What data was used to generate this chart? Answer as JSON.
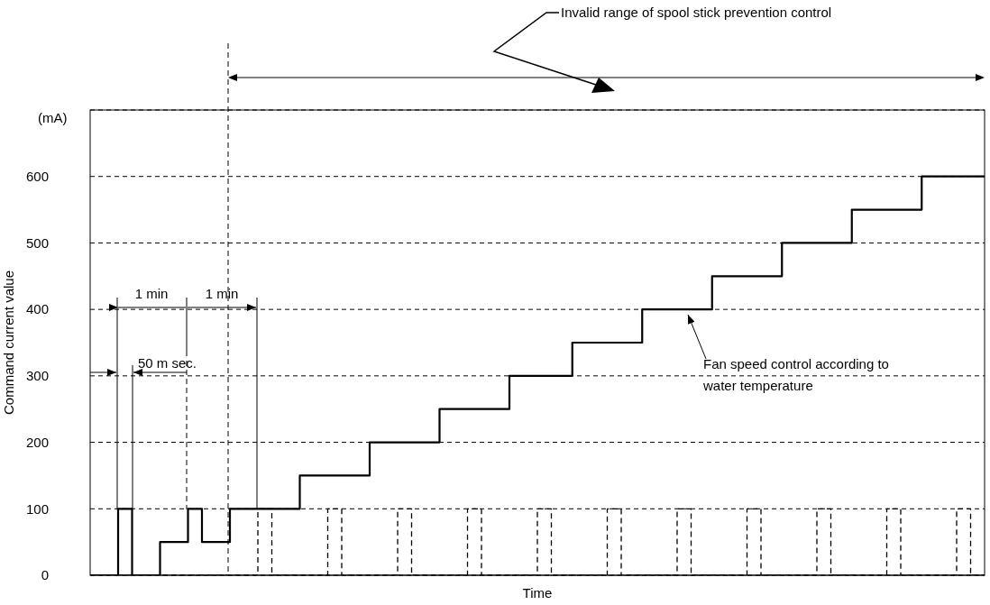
{
  "chart_data": {
    "type": "step",
    "xlabel": "Time",
    "ylabel": "Command current value",
    "categories": [
      null,
      null,
      null,
      null,
      null,
      null,
      null,
      null,
      null,
      null,
      null,
      null,
      null,
      null,
      null,
      null,
      null,
      null,
      null,
      null,
      null,
      null,
      null,
      null,
      null,
      null,
      null,
      null,
      null,
      null,
      null,
      null,
      null,
      null,
      null,
      null,
      null,
      null,
      null,
      null,
      null,
      null,
      null,
      null,
      null,
      null,
      null,
      null,
      null,
      null,
      null,
      null,
      null,
      null,
      null,
      null,
      null,
      null,
      null,
      null,
      null,
      null,
      null,
      null,
      null,
      null,
      null,
      null,
      null,
      null,
      null,
      null,
      null,
      null,
      null,
      null,
      null,
      null,
      null,
      null,
      null,
      null,
      null,
      null,
      null,
      null,
      null,
      null,
      null,
      null,
      null,
      null,
      null,
      null,
      null,
      null,
      null,
      null,
      null,
      null,
      null,
      null,
      null,
      null,
      null,
      null,
      null,
      null,
      null,
      null,
      null,
      null,
      null,
      null,
      null,
      null,
      null,
      null,
      null,
      null,
      null,
      null,
      null,
      null,
      null,
      null,
      null,
      null,
      null
    ],
    "series": [
      {
        "color": "#000000",
        "line_style": "solid",
        "values": [
          0,
          0,
          0,
          0,
          100,
          100,
          0,
          0,
          0,
          0,
          50,
          50,
          50,
          50,
          100,
          100,
          50,
          50,
          50,
          50,
          100,
          100,
          100,
          100,
          100,
          100,
          100,
          100,
          100,
          100,
          150,
          150,
          150,
          150,
          150,
          150,
          150,
          150,
          150,
          150,
          200,
          200,
          200,
          200,
          200,
          200,
          200,
          200,
          200,
          200,
          250,
          250,
          250,
          250,
          250,
          250,
          250,
          250,
          250,
          250,
          300,
          300,
          300,
          300,
          300,
          300,
          300,
          300,
          300,
          350,
          350,
          350,
          350,
          350,
          350,
          350,
          350,
          350,
          350,
          400,
          400,
          400,
          400,
          400,
          400,
          400,
          400,
          400,
          400,
          450,
          450,
          450,
          450,
          450,
          450,
          450,
          450,
          450,
          450,
          500,
          500,
          500,
          500,
          500,
          500,
          500,
          500,
          500,
          500,
          550,
          550,
          550,
          550,
          550,
          550,
          550,
          550,
          550,
          550,
          600,
          600,
          600,
          600,
          600,
          600,
          600,
          600,
          600,
          600
        ]
      },
      {
        "color": "#000000",
        "line_style": "dashed",
        "values": [
          0,
          0,
          0,
          0,
          0,
          0,
          0,
          0,
          0,
          0,
          0,
          0,
          0,
          0,
          0,
          0,
          0,
          0,
          0,
          0,
          0,
          0,
          0,
          0,
          100,
          100,
          0,
          0,
          0,
          0,
          0,
          0,
          0,
          0,
          100,
          100,
          0,
          0,
          0,
          0,
          0,
          0,
          0,
          0,
          100,
          100,
          0,
          0,
          0,
          0,
          0,
          0,
          0,
          0,
          100,
          100,
          0,
          0,
          0,
          0,
          0,
          0,
          0,
          0,
          100,
          100,
          0,
          0,
          0,
          0,
          0,
          0,
          0,
          0,
          100,
          100,
          0,
          0,
          0,
          0,
          0,
          0,
          0,
          0,
          100,
          100,
          0,
          0,
          0,
          0,
          0,
          0,
          0,
          0,
          100,
          100,
          0,
          0,
          0,
          0,
          0,
          0,
          0,
          0,
          100,
          100,
          0,
          0,
          0,
          0,
          0,
          0,
          0,
          0,
          100,
          100,
          0,
          0,
          0,
          0,
          0,
          0,
          0,
          0,
          100,
          100,
          0,
          0,
          0
        ]
      }
    ],
    "ylim": [
      0,
      700
    ],
    "yticks": [
      0,
      100,
      200,
      300,
      400,
      500,
      600
    ],
    "grid": "y",
    "marker": "none",
    "annotations": [
      "Invalid range of spool stick prevention control",
      "Fan speed control according to water temperature",
      "1 min",
      "1 min",
      "50 m sec.",
      "(mA)"
    ]
  }
}
